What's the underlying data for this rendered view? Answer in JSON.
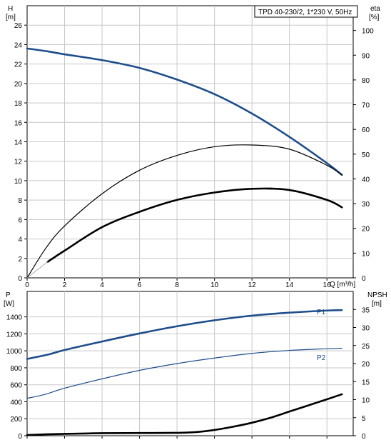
{
  "chart_data": [
    {
      "type": "line",
      "title": "TPD 40-230/2, 1*230 V, 50Hz",
      "xlabel": "Q [m³/h]",
      "ylabel_left": "H",
      "ylabel_left_unit": "[m]",
      "ylabel_right": "eta",
      "ylabel_right_unit": "[%]",
      "xlim": [
        0,
        17.4
      ],
      "ylim_left": [
        0,
        28
      ],
      "ylim_right": [
        0,
        110
      ],
      "x_ticks": [
        "0",
        "2",
        "4",
        "6",
        "8",
        "10",
        "12",
        "14",
        "16"
      ],
      "y_left_ticks": [
        "0",
        "2",
        "4",
        "6",
        "8",
        "10",
        "12",
        "14",
        "16",
        "18",
        "20",
        "22",
        "24",
        "26"
      ],
      "y_right_ticks": [
        "0",
        "10",
        "20",
        "30",
        "40",
        "50",
        "60",
        "70",
        "80",
        "90",
        "100"
      ],
      "grid": true,
      "series": [
        {
          "name": "H",
          "axis": "left",
          "color": "#1f4e8c",
          "x": [
            0,
            1.1,
            2,
            4,
            6,
            8,
            10,
            12,
            14,
            16,
            16.8
          ],
          "y": [
            23.6,
            23.3,
            23.0,
            22.4,
            21.6,
            20.4,
            18.9,
            16.9,
            14.5,
            11.8,
            10.6
          ]
        },
        {
          "name": "eta",
          "axis": "right",
          "color": "#000000",
          "x": [
            0,
            1,
            2,
            4,
            6,
            8,
            10,
            12,
            14,
            16,
            16.8
          ],
          "y": [
            0,
            12,
            21,
            34,
            43.5,
            49.5,
            53,
            53.7,
            52,
            45.5,
            41.5
          ]
        },
        {
          "name": "eta_p",
          "axis": "right",
          "color": "#000000",
          "x": [
            1.1,
            2,
            4,
            6,
            8,
            10,
            12,
            14,
            16,
            16.8
          ],
          "y": [
            6.5,
            11,
            20.5,
            26.7,
            31.5,
            34.5,
            36,
            35.5,
            31.5,
            28.5
          ]
        }
      ]
    },
    {
      "type": "line",
      "ylabel_left": "P",
      "ylabel_left_unit": "[W]",
      "ylabel_right": "NPSH",
      "ylabel_right_unit": "[m]",
      "xlim": [
        0,
        17.4
      ],
      "ylim_left": [
        0,
        1700
      ],
      "ylim_right": [
        0,
        40
      ],
      "y_left_ticks": [
        "0",
        "200",
        "400",
        "600",
        "800",
        "1000",
        "1200",
        "1400"
      ],
      "y_right_ticks": [
        "0",
        "5",
        "10",
        "15",
        "20",
        "25",
        "30",
        "35"
      ],
      "grid": true,
      "series": [
        {
          "name": "P1",
          "axis": "left",
          "color": "#1f4e8c",
          "x": [
            0,
            1.1,
            2,
            4,
            6,
            8,
            10,
            12,
            14,
            16,
            16.8
          ],
          "y": [
            905,
            955,
            1010,
            1110,
            1205,
            1290,
            1360,
            1415,
            1450,
            1475,
            1480
          ]
        },
        {
          "name": "P2",
          "axis": "left",
          "color": "#1f4e8c",
          "x": [
            0,
            1,
            2,
            4,
            6,
            8,
            10,
            12,
            14,
            16,
            16.8
          ],
          "y": [
            440,
            490,
            560,
            670,
            770,
            850,
            915,
            970,
            1005,
            1025,
            1030
          ]
        },
        {
          "name": "NPSH",
          "axis": "right",
          "color": "#000000",
          "x": [
            0,
            1.1,
            2,
            4,
            6,
            8,
            9,
            10,
            11,
            12,
            13,
            14,
            15,
            16,
            16.8
          ],
          "y": [
            0.2,
            0.4,
            0.5,
            0.7,
            0.75,
            0.8,
            1.0,
            1.6,
            2.5,
            3.6,
            5.0,
            6.7,
            8.4,
            10.1,
            11.5
          ]
        }
      ]
    }
  ]
}
